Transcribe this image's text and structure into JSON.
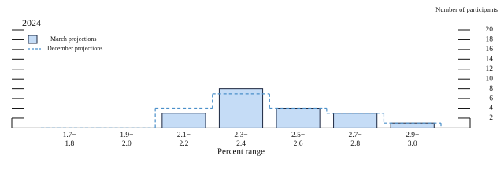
{
  "chart_data": {
    "type": "bar",
    "title": "2024",
    "y_axis_title": "Number of participants",
    "x_axis_title": "Percent range",
    "categories": [
      [
        "1.7−",
        "1.8"
      ],
      [
        "1.9−",
        "2.0"
      ],
      [
        "2.1−",
        "2.2"
      ],
      [
        "2.3−",
        "2.4"
      ],
      [
        "2.5−",
        "2.6"
      ],
      [
        "2.7−",
        "2.8"
      ],
      [
        "2.9−",
        "3.0"
      ]
    ],
    "series": [
      {
        "name": "March projections",
        "color": "#c5dcf6",
        "style": "bar",
        "values": [
          0,
          0,
          3,
          8,
          4,
          3,
          1
        ]
      },
      {
        "name": "December projections",
        "color": "#4a8fc9",
        "style": "dashed-step",
        "values": [
          0,
          0,
          4,
          7,
          4,
          3,
          1
        ]
      }
    ],
    "ylim": [
      0,
      20
    ],
    "yticks": [
      2,
      4,
      6,
      8,
      10,
      12,
      14,
      16,
      18,
      20
    ]
  }
}
